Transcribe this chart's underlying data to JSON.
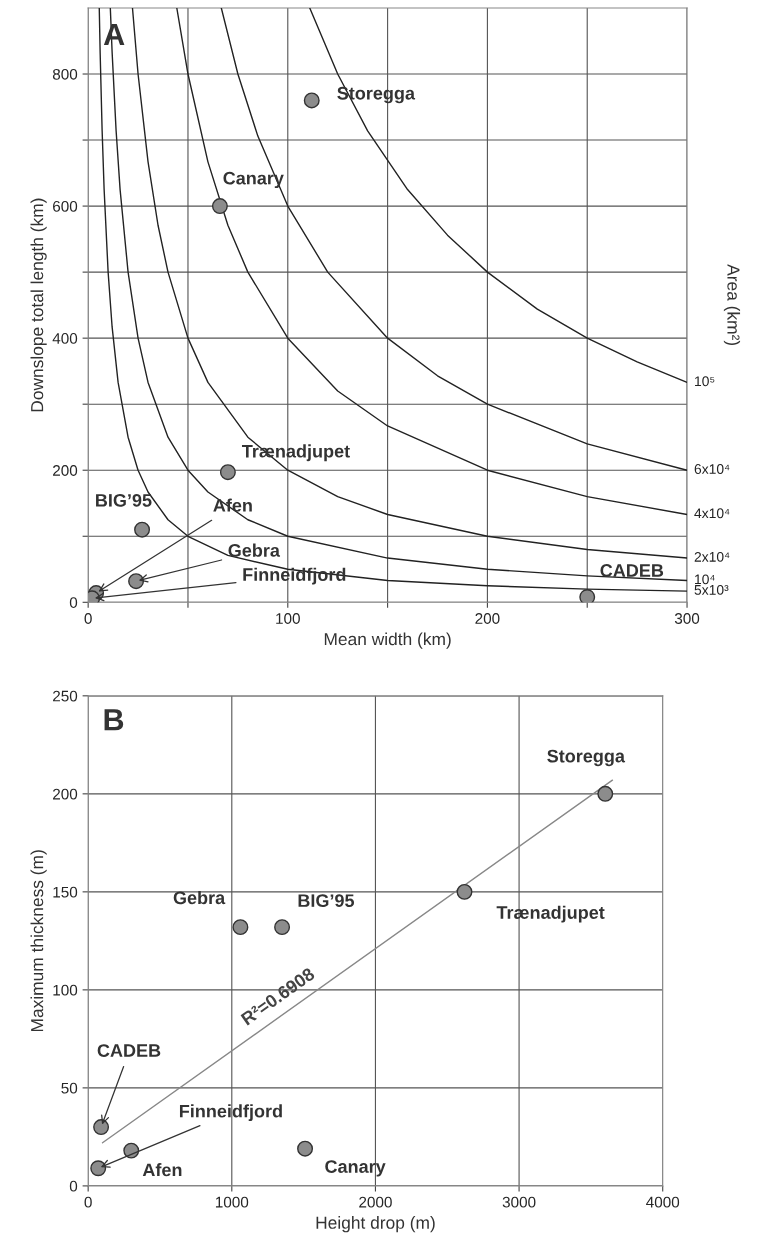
{
  "chart_data": [
    {
      "type": "scatter",
      "title": "A",
      "xlabel": "Mean width (km)",
      "ylabel": "Downslope total length (km)",
      "y2label": "Area (km²)",
      "grid": true,
      "xlim": [
        0,
        300
      ],
      "ylim": [
        0,
        900
      ],
      "xticks": [
        0,
        {
          "value": 50,
          "label": null
        },
        100,
        {
          "value": 150,
          "label": null
        },
        200,
        {
          "value": 250,
          "label": null
        },
        300
      ],
      "yticks": [
        0,
        {
          "value": 100,
          "label": null
        },
        200,
        {
          "value": 300,
          "label": null
        },
        400,
        {
          "value": 500,
          "label": null
        },
        600,
        {
          "value": 700,
          "label": null
        },
        800
      ],
      "series": [
        {
          "marker": "circle",
          "color": "#8c8c8c",
          "x": [
            112,
            66,
            70,
            27,
            4,
            24,
            2,
            250
          ],
          "values": [
            760,
            600,
            197,
            110,
            14,
            32,
            6,
            8
          ]
        },
        {
          "type": "line",
          "name": "10⁵",
          "color": "#222222",
          "x": [
            111,
            125,
            140,
            160,
            180,
            200,
            225,
            250,
            275,
            300
          ],
          "values": [
            900,
            800,
            714,
            625,
            556,
            500,
            444,
            400,
            364,
            333
          ]
        },
        {
          "type": "line",
          "name": "6x10⁴",
          "color": "#222222",
          "x": [
            66.7,
            75,
            85,
            100,
            120,
            150,
            175,
            200,
            250,
            300
          ],
          "values": [
            900,
            800,
            706,
            600,
            500,
            400,
            343,
            300,
            240,
            200
          ]
        },
        {
          "type": "line",
          "name": "4x10⁴",
          "color": "#222222",
          "x": [
            44.4,
            50,
            60,
            70,
            80,
            100,
            125,
            150,
            200,
            250,
            300
          ],
          "values": [
            900,
            800,
            667,
            571,
            500,
            400,
            320,
            267,
            200,
            160,
            133
          ]
        },
        {
          "type": "line",
          "name": "2x10⁴",
          "color": "#222222",
          "x": [
            22.2,
            25,
            30,
            35,
            40,
            50,
            60,
            80,
            100,
            125,
            150,
            200,
            250,
            300
          ],
          "values": [
            900,
            800,
            667,
            571,
            500,
            400,
            333,
            250,
            200,
            160,
            133,
            100,
            80,
            67
          ]
        },
        {
          "type": "line",
          "name": "10⁴",
          "color": "#222222",
          "x": [
            11.1,
            12,
            14,
            16,
            20,
            25,
            30,
            40,
            50,
            60,
            80,
            100,
            150,
            200,
            250,
            300
          ],
          "values": [
            900,
            833,
            714,
            625,
            500,
            400,
            333,
            250,
            200,
            167,
            125,
            100,
            67,
            50,
            40,
            33
          ]
        },
        {
          "type": "line",
          "name": "5x10³",
          "color": "#222222",
          "x": [
            5.56,
            6,
            7,
            8,
            10,
            12,
            15,
            20,
            25,
            30,
            40,
            50,
            70,
            100,
            150,
            200,
            250,
            300
          ],
          "values": [
            900,
            833,
            714,
            625,
            500,
            417,
            333,
            250,
            200,
            167,
            125,
            100,
            71,
            50,
            33,
            25,
            20,
            17
          ]
        }
      ],
      "annotations": [
        {
          "text": "Storegga",
          "x": 112,
          "y": 760
        },
        {
          "text": "Canary",
          "x": 66,
          "y": 600
        },
        {
          "text": "Trænadjupet",
          "x": 70,
          "y": 197
        },
        {
          "text": "BIG’95",
          "x": 27,
          "y": 110
        },
        {
          "text": "Afen",
          "x": 4,
          "y": 14
        },
        {
          "text": "Gebra",
          "x": 24,
          "y": 32
        },
        {
          "text": "Finneidfjord",
          "x": 2,
          "y": 6
        },
        {
          "text": "CADEB",
          "x": 250,
          "y": 8
        }
      ]
    },
    {
      "type": "scatter",
      "title": "B",
      "xlabel": "Height drop (m)",
      "ylabel": "Maximum thickness (m)",
      "grid": true,
      "xlim": [
        0,
        4000
      ],
      "ylim": [
        0,
        250
      ],
      "xticks": [
        0,
        1000,
        2000,
        3000,
        4000
      ],
      "yticks": [
        0,
        50,
        100,
        150,
        200,
        250
      ],
      "series": [
        {
          "marker": "circle",
          "color": "#8c8c8c",
          "x": [
            3600,
            2620,
            1060,
            1350,
            90,
            70,
            300,
            1510
          ],
          "values": [
            200,
            150,
            132,
            132,
            30,
            9,
            18,
            19
          ]
        },
        {
          "type": "line",
          "color": "#888888",
          "x": [
            100,
            3650
          ],
          "values": [
            22,
            207
          ]
        }
      ],
      "annotations": [
        {
          "text": "Storegga",
          "x": 3600,
          "y": 200
        },
        {
          "text": "Trænadjupet",
          "x": 2620,
          "y": 150
        },
        {
          "text": "Gebra",
          "x": 1060,
          "y": 132
        },
        {
          "text": "BIG’95",
          "x": 1350,
          "y": 132
        },
        {
          "text": "CADEB",
          "x": 90,
          "y": 30
        },
        {
          "text": "Finneidfjord",
          "x": 70,
          "y": 9
        },
        {
          "text": "Afen",
          "x": 300,
          "y": 18
        },
        {
          "text": "Canary",
          "x": 1510,
          "y": 19
        },
        "R²=0.6908"
      ]
    }
  ]
}
